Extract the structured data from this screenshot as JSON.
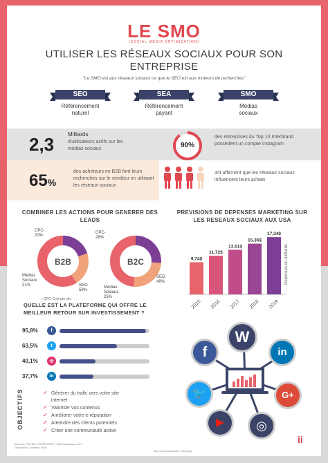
{
  "logo": {
    "title": "LE SMO",
    "subtitle": "(SOCIAL MEDIA OPTIMIZATION)"
  },
  "title": "UTILISER LES RÉSEAUX SOCIAUX POUR SON ENTREPRISE",
  "quote": "\"Le SMO est aux réseaux sociaux ce que le SEO est aux moteurs de recherches\"",
  "ribbons": [
    {
      "tag": "SEO",
      "label1": "Référencement",
      "label2": "naturel"
    },
    {
      "tag": "SEA",
      "label1": "Référencement",
      "label2": "payant"
    },
    {
      "tag": "SMO",
      "label1": "Médias",
      "label2": "sociaux"
    }
  ],
  "stats": {
    "users_value": "2,3",
    "users_unit": "Milliards",
    "users_text": "d'utilisateurs actifs sur les médias sociaux",
    "b2b_value": "65",
    "b2b_percent": "%",
    "b2b_text": "des acheteurs en B2B font leurs recherches sur le vendeur en utilisant les réseaux sociaux",
    "top10_value": "90%",
    "top10_text": "des entreprises du Top 10 Interbrand possèdent un compte Instagram",
    "influence_text": "3/4 affirment que les réseaux sociaux influencent leurs achats"
  },
  "leads": {
    "title": "COMBINER LES ACTIONS POUR GENERER DES LEADS",
    "b2b": {
      "label": "B2B",
      "slices": [
        {
          "name": "CPC",
          "pct": 20
        },
        {
          "name": "Médias Sociaux",
          "pct": 21
        },
        {
          "name": "SEO",
          "pct": 59
        }
      ]
    },
    "b2c": {
      "label": "B2C",
      "slices": [
        {
          "name": "CPC",
          "pct": 26
        },
        {
          "name": "Médias Sociaux",
          "pct": 25
        },
        {
          "name": "SEO",
          "pct": 49
        }
      ]
    },
    "labels": {
      "b2b_cpc": "CPC-",
      "b2b_cpc_pct": "20%",
      "b2b_social": "Médias",
      "b2b_social2": "Sociaux",
      "b2b_social_pct": "21%",
      "b2b_seo": "SEO",
      "b2b_seo_pct": "59%",
      "b2c_cpc": "CPC-",
      "b2c_cpc_pct": "26%",
      "b2c_social": "Médias",
      "b2c_social2": "Sociaux",
      "b2c_social_pct": "25%",
      "b2c_seo": "SEO",
      "b2c_seo_pct": "49%",
      "legend": "• CPC-Cost per clic"
    }
  },
  "forecast": {
    "title": "PREVISIONS DE DEPENSES MARKETING SUR LES RESEAUX SOCIAUX AUX USA",
    "unit_label": "Dépenses en milliards"
  },
  "platform": {
    "title": "QUELLE EST LA PLATEFORME QUI OFFRE LE MEILLEUR RETOUR SUR INVESTISSEMENT ?",
    "rows": [
      {
        "pct": "95,8%",
        "value": 95.8,
        "icon": "facebook-icon",
        "glyph": "f",
        "color": "#3b5998"
      },
      {
        "pct": "63,5%",
        "value": 63.5,
        "icon": "twitter-icon",
        "glyph": "t",
        "color": "#1da1f2"
      },
      {
        "pct": "40,1%",
        "value": 40.1,
        "icon": "instagram-icon",
        "glyph": "◎",
        "color": "#e1306c"
      },
      {
        "pct": "37,7%",
        "value": 37.7,
        "icon": "linkedin-icon",
        "glyph": "in",
        "color": "#0077b5"
      }
    ]
  },
  "objectives": {
    "title": "OBJECTIFS",
    "items": [
      "Générer du trafic vers votre site",
      "internet",
      "Valoriser vos contenus",
      "Améliorer votre e-réputation",
      "Atteindre des clients potentiels",
      "Créer une communauté active"
    ]
  },
  "social_icons": {
    "wordpress": "W",
    "facebook": "f",
    "linkedin": "in",
    "twitter": "🐦",
    "googleplus": "G+",
    "youtube": "▶",
    "instagram": "◎"
  },
  "footer": {
    "line1": "Sources: DIGITAL STRATEGIES / Webmarketing-com.fr",
    "line2": "Conception: Creation SMO",
    "url": "http://www.slideshare.net/blogs/"
  },
  "mark": "ii",
  "chart_data": {
    "type": "bar",
    "title": "PREVISIONS DE DEPENSES MARKETING SUR LES RESEAUX SOCIAUX AUX USA",
    "categories": [
      "2015",
      "2016",
      "2017",
      "2018",
      "2019"
    ],
    "values": [
      9.74,
      11.72,
      13.51,
      15.36,
      17.34
    ],
    "value_labels": [
      "9,74$",
      "11,72$",
      "13,51$",
      "15,36$",
      "17,34$"
    ],
    "ylabel": "Dépenses en milliards",
    "ylim": [
      0,
      18
    ],
    "colors": [
      "#e8636a",
      "#d9557a",
      "#c04c8a",
      "#9a4693",
      "#7d3f96"
    ]
  }
}
